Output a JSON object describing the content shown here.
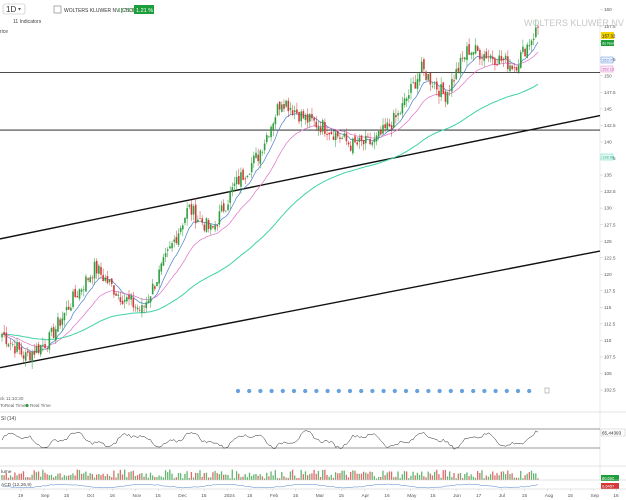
{
  "topbar": {
    "interval": "1D",
    "indicators_label": "11 Indicators",
    "symbol_title": "WOLTERS KLUWER NV [CBOE]",
    "last_price": "157.33",
    "change_pct": "1.21 %"
  },
  "left_stub": "rice",
  "watermark": "WOLTERS KLUWER NV",
  "price_badges": {
    "last": "157.32",
    "sub": "do Now",
    "ema_fast": "153.71",
    "ema_mid": "152.12",
    "ema_slow": "138.66"
  },
  "status": {
    "timestamp_text": "ck 11:10:30",
    "source_label": "ToReal Time",
    "realtime_label": "Real Time"
  },
  "rsi": {
    "label": "SI (14)",
    "value_badge": "65,44393"
  },
  "volume": {
    "label": "lume",
    "value_badge": "80,692"
  },
  "macd": {
    "label": "ACD (12,26,9)",
    "value_badge": "0,6457"
  },
  "colors": {
    "bull": "#2e9e3e",
    "bear": "#d33a3a",
    "ema_fast": "#4a7ec9",
    "ema_mid": "#e070c8",
    "ema_slow": "#3fd2a8",
    "badge_green": "#1e9e3a"
  },
  "chart_data": {
    "type": "candlestick",
    "title": "WOLTERS KLUWER NV",
    "y_ticks": [
      "160",
      "157.5",
      "155",
      "152.5",
      "150",
      "147.5",
      "145",
      "142.5",
      "140",
      "137.5",
      "135",
      "132.5",
      "130",
      "127.5",
      "125",
      "122.5",
      "120",
      "117.5",
      "115",
      "112.5",
      "110",
      "107.5",
      "105",
      "102.5"
    ],
    "ylim": [
      101,
      161
    ],
    "x_tick_labels": [
      "19",
      "Sep",
      "15",
      "Oct",
      "16",
      "Nov",
      "15",
      "Dec",
      "15",
      "2024",
      "15",
      "Feb",
      "15",
      "Mar",
      "15",
      "Apr",
      "16",
      "May",
      "15",
      "Jun",
      "17",
      "Jul",
      "15",
      "Aug",
      "15",
      "Sep",
      "16"
    ],
    "close_series": [
      {
        "label": "Aug 19",
        "value": 111.0
      },
      {
        "label": "Sep",
        "value": 107.5
      },
      {
        "label": "Sep 15",
        "value": 110.0
      },
      {
        "label": "Oct",
        "value": 116.0
      },
      {
        "label": "Oct 16",
        "value": 121.0
      },
      {
        "label": "Nov",
        "value": 117.0
      },
      {
        "label": "Nov 15",
        "value": 114.5
      },
      {
        "label": "Dec",
        "value": 122.0
      },
      {
        "label": "Dec 15",
        "value": 130.0
      },
      {
        "label": "2024",
        "value": 126.5
      },
      {
        "label": "Jan 15",
        "value": 133.5
      },
      {
        "label": "Feb",
        "value": 138.0
      },
      {
        "label": "Feb 15",
        "value": 146.5
      },
      {
        "label": "Mar",
        "value": 143.5
      },
      {
        "label": "Mar 15",
        "value": 142.0
      },
      {
        "label": "Apr",
        "value": 139.5
      },
      {
        "label": "Apr 16",
        "value": 140.0
      },
      {
        "label": "May",
        "value": 144.0
      },
      {
        "label": "May 15",
        "value": 151.0
      },
      {
        "label": "Jun",
        "value": 147.0
      },
      {
        "label": "Jun 17",
        "value": 154.0
      },
      {
        "label": "Jul",
        "value": 153.0
      },
      {
        "label": "Jul 15",
        "value": 151.5
      },
      {
        "label": "Aug",
        "value": 157.3
      }
    ],
    "horizontal_levels": [
      150.5,
      141.8
    ],
    "trend_lines": [
      {
        "from": {
          "label": "Aug 19",
          "value": 126.0
        },
        "to": {
          "label": "Sep 16",
          "value": 144.5
        }
      },
      {
        "from": {
          "label": "Aug 19",
          "value": 106.5
        },
        "to": {
          "label": "Sep 16",
          "value": 124.0
        }
      }
    ],
    "rsi_last": 65.44393,
    "grid": false
  }
}
